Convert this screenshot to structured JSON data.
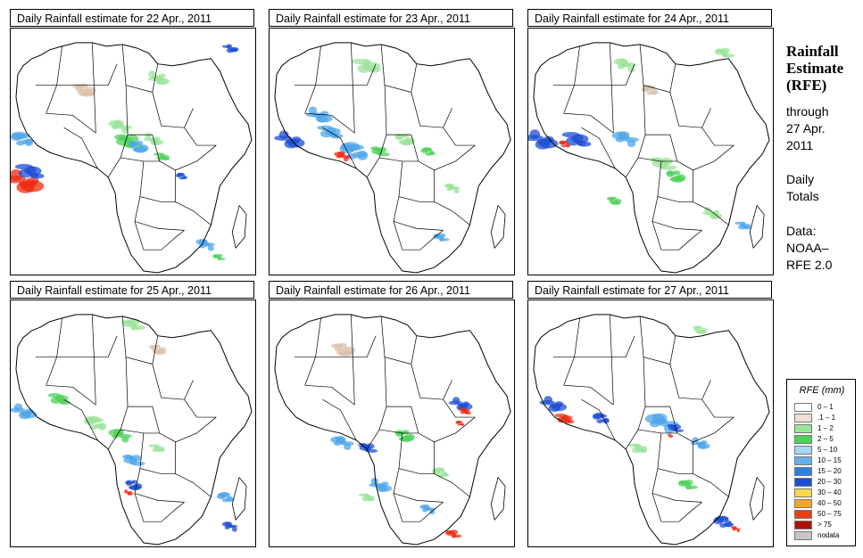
{
  "panels": [
    {
      "title": "Daily Rainfall estimate for  22 Apr., 2011",
      "rain": [
        [
          5,
          62,
          12,
          "#ef2a12"
        ],
        [
          8,
          58,
          9,
          "#1e4fd6"
        ],
        [
          5,
          45,
          8,
          "#4da6ea"
        ],
        [
          45,
          40,
          7,
          "#9be39a"
        ],
        [
          48,
          46,
          9,
          "#4ed15a"
        ],
        [
          52,
          48,
          7,
          "#4da6ea"
        ],
        [
          58,
          45,
          6,
          "#9be39a"
        ],
        [
          62,
          52,
          5,
          "#4ed15a"
        ],
        [
          70,
          60,
          4,
          "#1e4fd6"
        ],
        [
          80,
          88,
          6,
          "#4da6ea"
        ],
        [
          85,
          93,
          4,
          "#4ed15a"
        ],
        [
          30,
          25,
          8,
          "#dcc0ad"
        ],
        [
          60,
          20,
          7,
          "#9be39a"
        ],
        [
          90,
          8,
          5,
          "#1e4fd6"
        ]
      ]
    },
    {
      "title": "Daily Rainfall estimate for  23 Apr., 2011",
      "rain": [
        [
          8,
          45,
          9,
          "#1e4fd6"
        ],
        [
          25,
          42,
          8,
          "#4da6ea"
        ],
        [
          35,
          50,
          10,
          "#4da6ea"
        ],
        [
          30,
          52,
          5,
          "#ef2a12"
        ],
        [
          45,
          50,
          6,
          "#4ed15a"
        ],
        [
          55,
          45,
          7,
          "#9be39a"
        ],
        [
          20,
          35,
          8,
          "#4da6ea"
        ],
        [
          40,
          15,
          9,
          "#9be39a"
        ],
        [
          65,
          50,
          5,
          "#4ed15a"
        ],
        [
          75,
          65,
          5,
          "#9be39a"
        ],
        [
          70,
          85,
          5,
          "#4da6ea"
        ]
      ]
    },
    {
      "title": "Daily Rainfall estimate for  24 Apr., 2011",
      "rain": [
        [
          5,
          45,
          10,
          "#1e4fd6"
        ],
        [
          20,
          45,
          9,
          "#1e4fd6"
        ],
        [
          15,
          47,
          4,
          "#ef2a12"
        ],
        [
          40,
          45,
          8,
          "#4da6ea"
        ],
        [
          55,
          55,
          8,
          "#9be39a"
        ],
        [
          60,
          60,
          7,
          "#4ed15a"
        ],
        [
          75,
          75,
          6,
          "#9be39a"
        ],
        [
          88,
          80,
          5,
          "#4da6ea"
        ],
        [
          50,
          25,
          6,
          "#dcc0ad"
        ],
        [
          40,
          15,
          7,
          "#9be39a"
        ],
        [
          80,
          10,
          6,
          "#9be39a"
        ],
        [
          35,
          70,
          5,
          "#4ed15a"
        ]
      ]
    },
    {
      "title": "Daily Rainfall estimate for  25 Apr., 2011",
      "rain": [
        [
          5,
          45,
          8,
          "#4da6ea"
        ],
        [
          20,
          40,
          7,
          "#4ed15a"
        ],
        [
          35,
          50,
          8,
          "#9be39a"
        ],
        [
          45,
          55,
          7,
          "#4ed15a"
        ],
        [
          50,
          65,
          7,
          "#4da6ea"
        ],
        [
          50,
          75,
          6,
          "#1e4fd6"
        ],
        [
          48,
          78,
          3,
          "#ef2a12"
        ],
        [
          60,
          60,
          5,
          "#9be39a"
        ],
        [
          88,
          80,
          6,
          "#4da6ea"
        ],
        [
          90,
          92,
          5,
          "#1e4fd6"
        ],
        [
          50,
          10,
          7,
          "#9be39a"
        ],
        [
          60,
          20,
          6,
          "#dcc0ad"
        ]
      ]
    },
    {
      "title": "Daily Rainfall estimate for  26 Apr., 2011",
      "rain": [
        [
          78,
          42,
          7,
          "#1e4fd6"
        ],
        [
          80,
          45,
          4,
          "#ef2a12"
        ],
        [
          78,
          50,
          3,
          "#ef2a12"
        ],
        [
          30,
          58,
          7,
          "#4da6ea"
        ],
        [
          40,
          60,
          6,
          "#1e4fd6"
        ],
        [
          55,
          55,
          7,
          "#4ed15a"
        ],
        [
          45,
          75,
          7,
          "#4da6ea"
        ],
        [
          40,
          80,
          5,
          "#9be39a"
        ],
        [
          70,
          70,
          6,
          "#9be39a"
        ],
        [
          65,
          85,
          5,
          "#4da6ea"
        ],
        [
          75,
          95,
          5,
          "#ef2a12"
        ],
        [
          30,
          20,
          8,
          "#dcc0ad"
        ]
      ]
    },
    {
      "title": "Daily Rainfall estimate for  27 Apr., 2011",
      "rain": [
        [
          10,
          42,
          8,
          "#1e4fd6"
        ],
        [
          15,
          48,
          6,
          "#ef2a12"
        ],
        [
          30,
          48,
          6,
          "#1e4fd6"
        ],
        [
          55,
          50,
          10,
          "#4da6ea"
        ],
        [
          60,
          52,
          5,
          "#1e4fd6"
        ],
        [
          58,
          55,
          2,
          "#ef2a12"
        ],
        [
          70,
          58,
          6,
          "#4da6ea"
        ],
        [
          45,
          60,
          6,
          "#9be39a"
        ],
        [
          80,
          90,
          7,
          "#1e4fd6"
        ],
        [
          85,
          93,
          3,
          "#ef2a12"
        ],
        [
          65,
          75,
          6,
          "#4ed15a"
        ],
        [
          70,
          12,
          5,
          "#9be39a"
        ]
      ]
    }
  ],
  "side": {
    "title": "Rainfall Estimate (RFE)",
    "through_label": "through",
    "through_date_1": "27 Apr.",
    "through_date_2": "2011",
    "daily_label": "Daily",
    "totals_label": "Totals",
    "data_label": "Data:",
    "data_source_1": "NOAA–",
    "data_source_2": "RFE 2.0"
  },
  "legend": {
    "title": "RFE (mm)",
    "items": [
      {
        "label": "0 – 1",
        "color": "#ffffff"
      },
      {
        "label": ".1 – 1",
        "color": "#efe0d2"
      },
      {
        "label": "1 – 2",
        "color": "#9be39a"
      },
      {
        "label": "2 – 5",
        "color": "#4ed15a"
      },
      {
        "label": "5 – 10",
        "color": "#a8d6f5"
      },
      {
        "label": "10 – 15",
        "color": "#63b1ec"
      },
      {
        "label": "15 – 20",
        "color": "#2d80e0"
      },
      {
        "label": "20 – 30",
        "color": "#1c4fd0"
      },
      {
        "label": "30 – 40",
        "color": "#fad84e"
      },
      {
        "label": "40 – 50",
        "color": "#f5a72a"
      },
      {
        "label": "50 – 75",
        "color": "#ea4014"
      },
      {
        "label": "> 75",
        "color": "#b21000"
      },
      {
        "label": "nodata",
        "color": "#c7c7c7"
      }
    ]
  }
}
